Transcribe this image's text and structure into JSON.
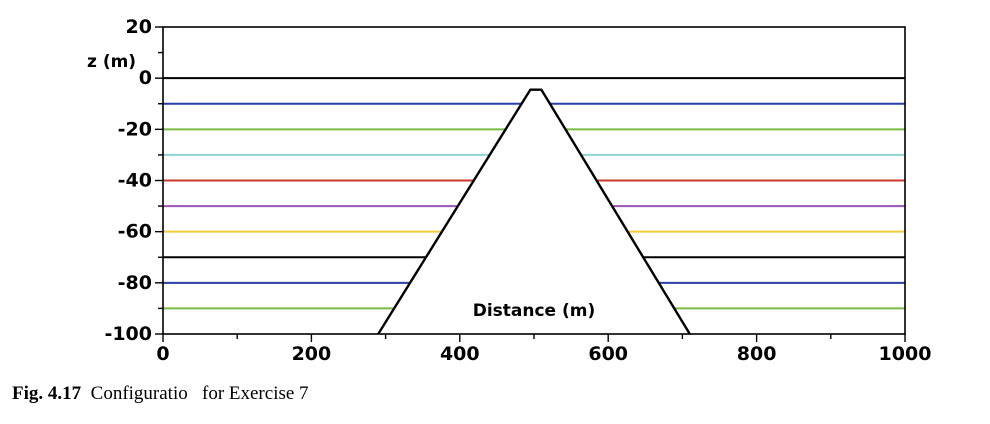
{
  "chart_data": {
    "type": "line",
    "xlabel": "Distance (m)",
    "ylabel": "z (m)",
    "xlim": [
      0,
      1000
    ],
    "ylim": [
      -100,
      20
    ],
    "x_ticks": [
      "0",
      "200",
      "400",
      "600",
      "800",
      "1000"
    ],
    "y_ticks": [
      "20",
      "0",
      "-20",
      "-40",
      "-60",
      "-80",
      "-100"
    ],
    "legend": "none",
    "grid": false,
    "layers": [
      {
        "z": 0,
        "color": "#000000"
      },
      {
        "z": -10,
        "color": "#2b3fa8"
      },
      {
        "z": -20,
        "color": "#77bb44"
      },
      {
        "z": -30,
        "color": "#8fd3d3"
      },
      {
        "z": -40,
        "color": "#c8382b"
      },
      {
        "z": -50,
        "color": "#9a54b5"
      },
      {
        "z": -60,
        "color": "#f2cc3c"
      },
      {
        "z": -70,
        "color": "#000000"
      },
      {
        "z": -80,
        "color": "#2b3fa8"
      },
      {
        "z": -90,
        "color": "#77bb44"
      }
    ],
    "hill": {
      "x": [
        290,
        495,
        510,
        710
      ],
      "z": [
        -100,
        -4.5,
        -4.5,
        -100
      ],
      "color": "#000000"
    }
  },
  "caption": {
    "label": "Fig. 4.17",
    "text": "  Configuratio   for Exercise 7"
  }
}
